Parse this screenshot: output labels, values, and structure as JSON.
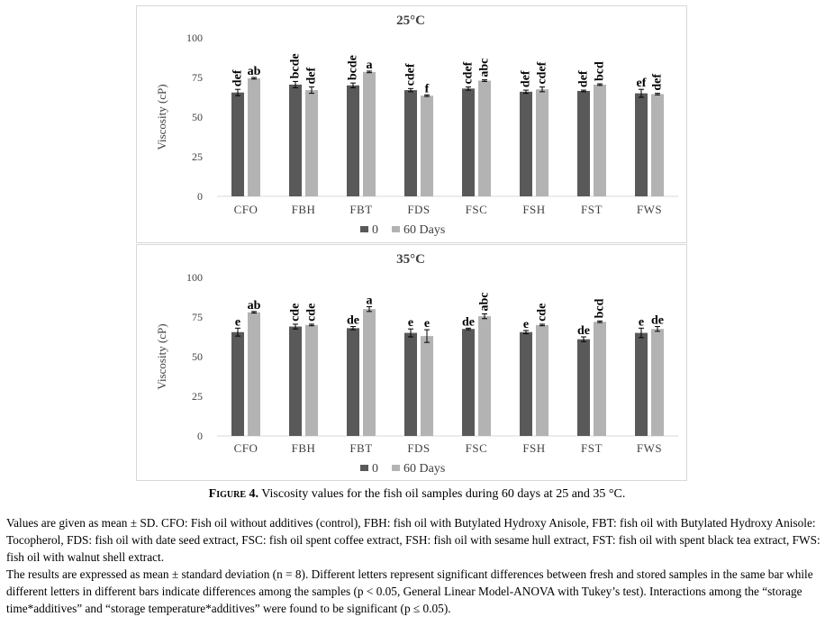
{
  "colors": {
    "day0": "#595959",
    "day60": "#b3b3b3",
    "errorbar": "#000000",
    "grid": "#d9d9d9"
  },
  "chart_data": [
    {
      "type": "bar",
      "title": "25°C",
      "ylabel": "Viscosity (cP)",
      "ylim": [
        0,
        100
      ],
      "yticks": [
        0,
        25,
        50,
        75,
        100
      ],
      "categories": [
        "CFO",
        "FBH",
        "FBT",
        "FDS",
        "FSC",
        "FSH",
        "FST",
        "FWS"
      ],
      "legend": {
        "position": "bottom",
        "entries": [
          "0",
          "60 Days"
        ]
      },
      "grid": false,
      "series": [
        {
          "name": "0",
          "values": [
            65.5,
            70.5,
            70,
            67,
            68,
            66,
            66.5,
            65
          ],
          "errors": [
            2,
            2,
            1.5,
            1,
            1,
            1,
            0.5,
            2.5
          ],
          "letters": [
            "def",
            "bcde",
            "bcde",
            "cdef",
            "cdef",
            "def",
            "def",
            "ef"
          ]
        },
        {
          "name": "60 Days",
          "values": [
            74.5,
            67,
            78.5,
            63.5,
            73,
            67.5,
            70.5,
            64.5
          ],
          "errors": [
            0.5,
            2,
            0.5,
            0.5,
            0.5,
            1.5,
            0.5,
            0.5
          ],
          "letters": [
            "ab",
            "def",
            "a",
            "f",
            "abc",
            "cdef",
            "bcd",
            "def"
          ]
        }
      ]
    },
    {
      "type": "bar",
      "title": "35°C",
      "ylabel": "Viscosity (cP)",
      "ylim": [
        0,
        100
      ],
      "yticks": [
        0,
        25,
        50,
        75,
        100
      ],
      "categories": [
        "CFO",
        "FBH",
        "FBT",
        "FDS",
        "FSC",
        "FSH",
        "FST",
        "FWS"
      ],
      "legend": {
        "position": "bottom",
        "entries": [
          "0",
          "60 Days"
        ]
      },
      "grid": false,
      "series": [
        {
          "name": "0",
          "values": [
            65.5,
            69,
            68,
            65,
            67.5,
            65.5,
            61,
            65
          ],
          "errors": [
            2.5,
            1.5,
            1,
            2.5,
            0.5,
            1,
            1.5,
            3
          ],
          "letters": [
            "e",
            "cde",
            "de",
            "e",
            "de",
            "e",
            "de",
            "e"
          ]
        },
        {
          "name": "60 Days",
          "values": [
            78,
            70,
            80,
            63,
            75.5,
            70,
            72,
            67.5
          ],
          "errors": [
            0.5,
            0.5,
            1.5,
            4,
            1.5,
            0.5,
            0.5,
            1.5
          ],
          "letters": [
            "ab",
            "cde",
            "a",
            "e",
            "abc",
            "cde",
            "bcd",
            "de"
          ]
        }
      ]
    }
  ],
  "caption": {
    "lead": "Figure 4.",
    "text": " Viscosity values for the fish oil samples during 60 days at 25 and 35 °C."
  },
  "notes": [
    "Values are given as mean ± SD. CFO: Fish oil without additives (control), FBH: fish oil with Butylated Hydroxy Anisole, FBT: fish oil with Butylated Hydroxy Anisole: Tocopherol, FDS: fish oil with date seed extract, FSC: fish oil spent coffee extract, FSH: fish oil with sesame hull extract, FST: fish oil with spent black tea extract, FWS: fish oil with walnut shell extract.",
    "The results are expressed as mean ± standard deviation (n = 8). Different letters represent significant differences between fresh and stored samples in the same bar while different letters in different bars indicate differences among the samples (p < 0.05, General Linear Model-ANOVA with Tukey’s test). Interactions among the “storage time*additives” and “storage temperature*additives” were found to be significant (p ≤ 0.05)."
  ]
}
